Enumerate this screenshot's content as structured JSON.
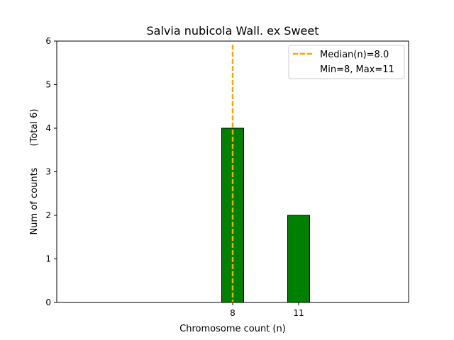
{
  "chart_data": {
    "type": "bar",
    "title": "Salvia nubicola Wall. ex Sweet",
    "xlabel": "Chromosome count (n)",
    "ylabel": "Num of counts",
    "ylabel_total": "(Total 6)",
    "x": [
      8,
      11
    ],
    "values": [
      4,
      2
    ],
    "bar_color": "#008000",
    "bar_edge_color": "#000000",
    "xlim": [
      0,
      16
    ],
    "ylim": [
      0,
      6
    ],
    "xticks": [
      8,
      11
    ],
    "yticks": [
      0,
      1,
      2,
      3,
      4,
      5,
      6
    ],
    "median_line": {
      "x": 8,
      "color": "#FFA500",
      "style": "dashed"
    },
    "legend": {
      "position": "top-right",
      "entries": [
        "Median(n)=8.0",
        "Min=8, Max=11"
      ]
    },
    "grid": false
  }
}
